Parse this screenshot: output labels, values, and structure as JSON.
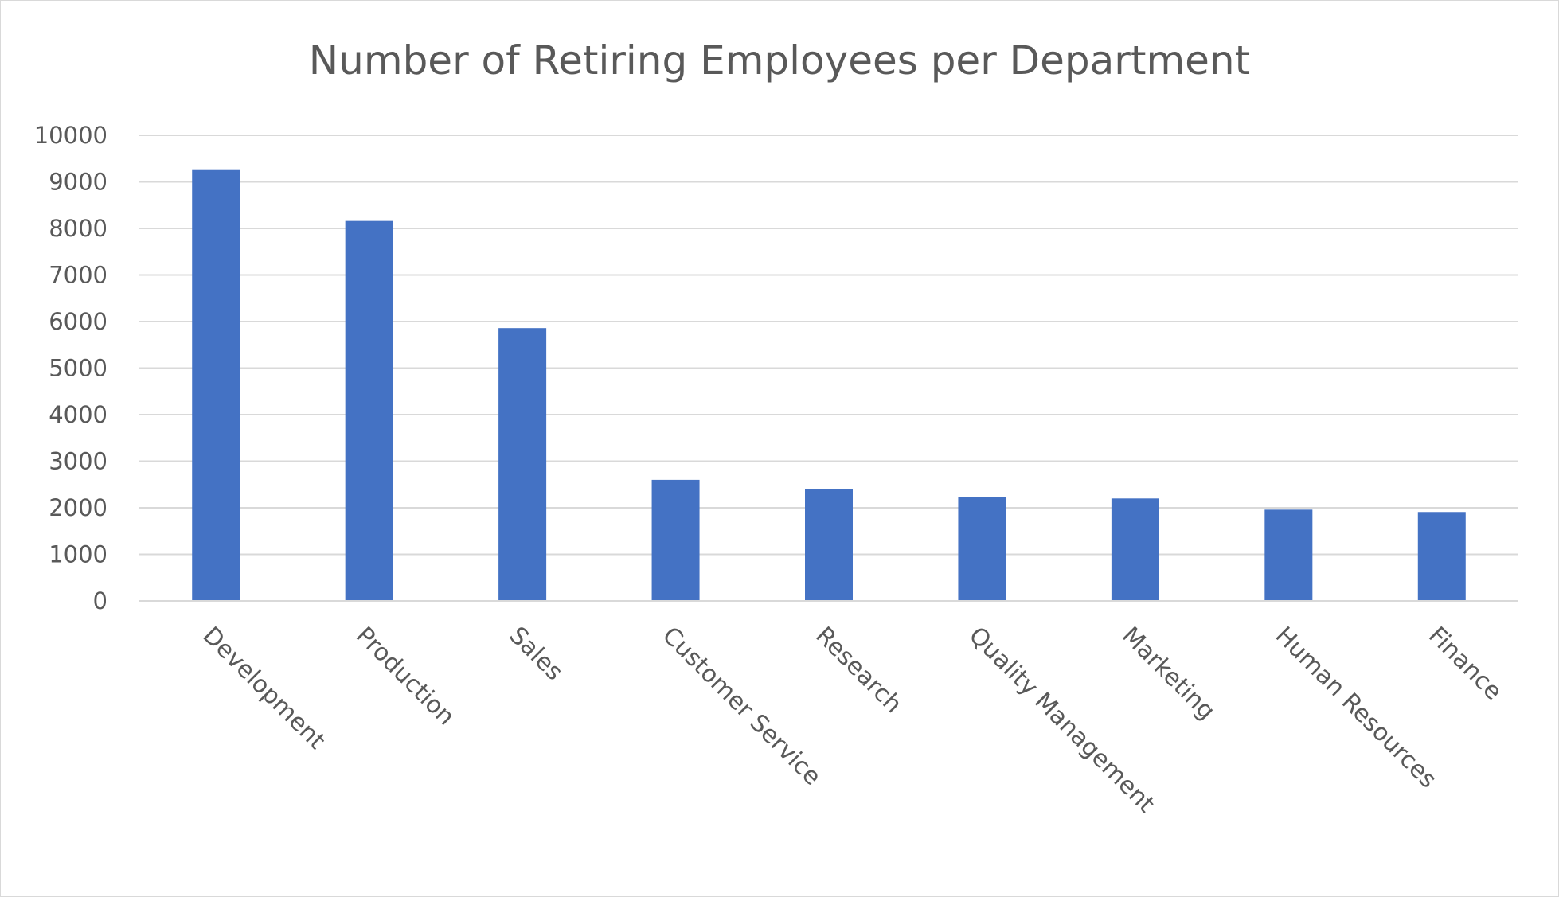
{
  "chart_data": {
    "type": "bar",
    "title": "Number of Retiring Employees per Department",
    "xlabel": "",
    "ylabel": "",
    "categories": [
      "Development",
      "Production",
      "Sales",
      "Customer Service",
      "Research",
      "Quality Management",
      "Marketing",
      "Human Resources",
      "Finance"
    ],
    "values": [
      9270,
      8160,
      5860,
      2600,
      2410,
      2230,
      2200,
      1960,
      1910
    ],
    "ylim": [
      0,
      10000
    ],
    "yticks": [
      "0",
      "1000",
      "2000",
      "3000",
      "4000",
      "5000",
      "6000",
      "7000",
      "8000",
      "9000",
      "10000"
    ],
    "grid": true,
    "legend": "none",
    "bar_color": "#4472c4"
  }
}
